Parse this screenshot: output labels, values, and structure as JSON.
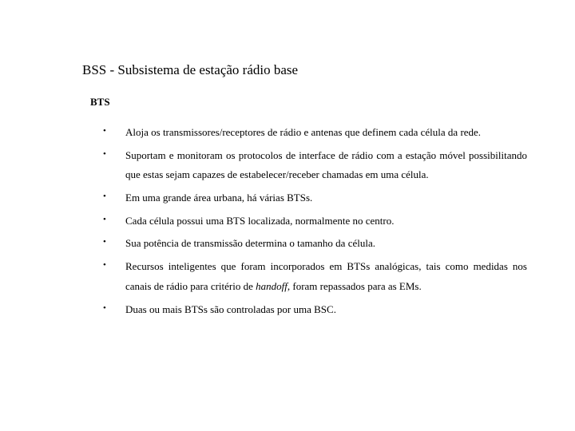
{
  "title": "BSS - Subsistema de estação rádio base",
  "subtitle": "BTS",
  "bullets": [
    "Aloja os transmissores/receptores de rádio e antenas que definem cada célula da rede.",
    "Suportam e monitoram os protocolos de interface de rádio com a estação móvel possibilitando que estas sejam capazes de estabelecer/receber chamadas em uma célula.",
    "Em uma grande área urbana, há várias BTSs.",
    "Cada célula possui uma BTS localizada, normalmente no centro.",
    "Sua potência de transmissão determina o tamanho da célula.",
    "__ITALIC__",
    "Duas ou mais BTSs são controladas por uma BSC."
  ],
  "bullet_italic": {
    "pre": "Recursos inteligentes que foram incorporados em BTSs analógicas, tais como medidas nos canais de rádio para critério de ",
    "italic": "handoff",
    "post": ", foram repassados para as EMs."
  },
  "colors": {
    "background": "#ffffff",
    "text": "#000000"
  },
  "typography": {
    "title_fontsize": 17,
    "subtitle_fontsize": 13,
    "body_fontsize": 13,
    "font_family": "Times New Roman"
  }
}
